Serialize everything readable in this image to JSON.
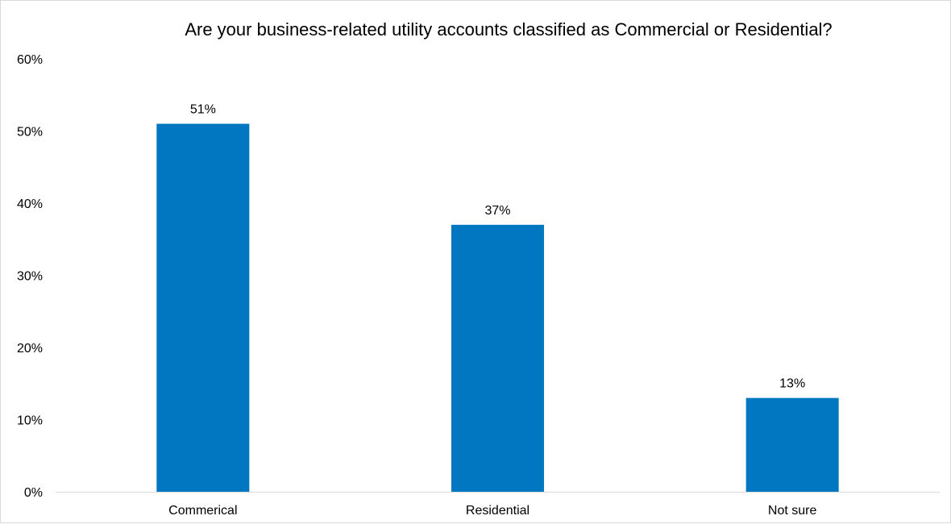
{
  "chart_data": {
    "type": "bar",
    "title": "Are your business-related utility accounts classified as Commercial or Residential?",
    "categories": [
      "Commerical",
      "Residential",
      "Not sure"
    ],
    "values": [
      51,
      37,
      13
    ],
    "data_labels": [
      "51%",
      "37%",
      "13%"
    ],
    "y_ticks": [
      0,
      10,
      20,
      30,
      40,
      50,
      60
    ],
    "y_tick_labels": [
      "0%",
      "10%",
      "20%",
      "30%",
      "40%",
      "50%",
      "60%"
    ],
    "ylim": [
      0,
      60
    ],
    "grid": false,
    "legend": "none",
    "bar_color": "#0077C0"
  }
}
